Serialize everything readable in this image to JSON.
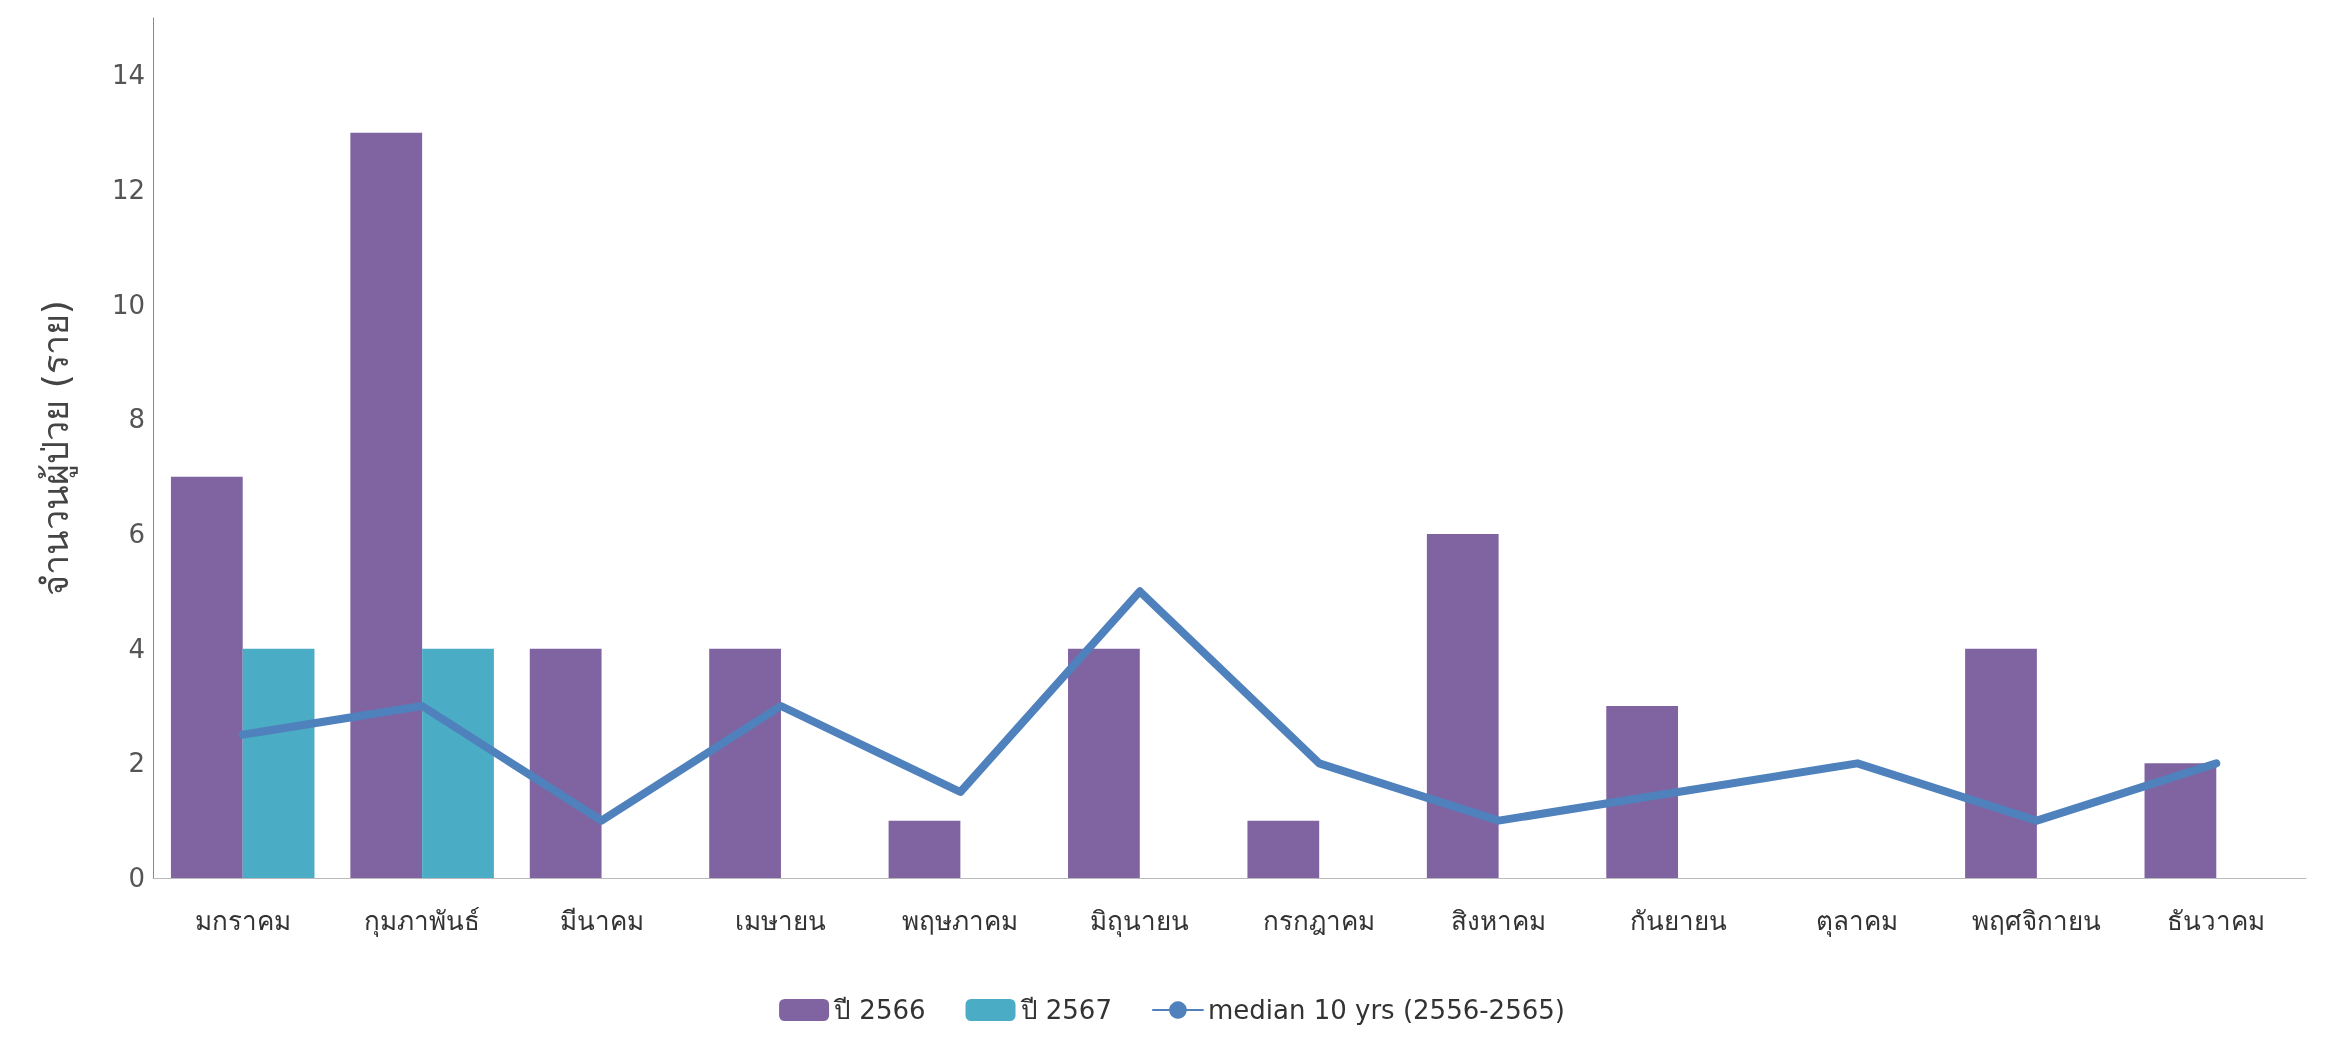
{
  "chart_data": {
    "type": "bar",
    "ylabel": "จำนวนผู้ป่วย (ราย)",
    "categories": [
      "มกราคม",
      "กุมภาพันธ์",
      "มีนาคม",
      "เมษายน",
      "พฤษภาคม",
      "มิถุนายน",
      "กรกฎาคม",
      "สิงหาคม",
      "กันยายน",
      "ตุลาคม",
      "พฤศจิกายน",
      "ธันวาคม"
    ],
    "series": [
      {
        "name": "ปี 2566",
        "color": "#8064a2",
        "values": [
          7,
          13,
          4,
          4,
          1,
          4,
          1,
          6,
          3,
          null,
          4,
          2
        ]
      },
      {
        "name": "ปี 2567",
        "color": "#4bacc6",
        "values": [
          4,
          4,
          null,
          null,
          null,
          null,
          null,
          null,
          null,
          null,
          null,
          null
        ]
      },
      {
        "name": "median 10 yrs (2556-2565)",
        "type": "line",
        "color": "#4f81bd",
        "marker": "none",
        "line_style": "solid",
        "values": [
          2.5,
          3,
          1,
          3,
          1.5,
          5,
          2,
          1,
          1.5,
          2,
          1,
          2
        ]
      }
    ],
    "ylim": [
      0,
      15
    ],
    "yticks": [
      0,
      2,
      4,
      6,
      8,
      10,
      12,
      14
    ],
    "grid": false,
    "legend": "bottom"
  }
}
